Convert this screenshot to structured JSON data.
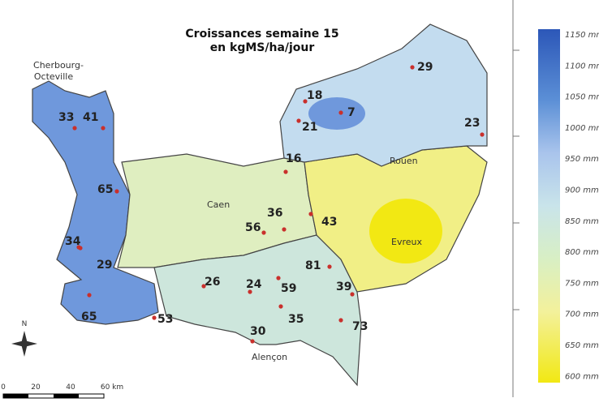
{
  "title": [
    "Croissances semaine 15",
    "en kgMS/ha/jour"
  ],
  "cities": {
    "cherbourg": [
      "Cherbourg-",
      "Octeville"
    ],
    "caen": "Caen",
    "rouen": "Rouen",
    "evreux": "Evreux",
    "alencon": "Alençon"
  },
  "growth_values": [
    33,
    41,
    65,
    34,
    29,
    65,
    18,
    7,
    21,
    29,
    23,
    16,
    36,
    43,
    56,
    81,
    26,
    24,
    59,
    39,
    35,
    53,
    73,
    30
  ],
  "legend": [
    "1150 mm",
    "1100 mm",
    "1050 mm",
    "1000 mm",
    "950 mm",
    "900 mm",
    "850 mm",
    "800 mm",
    "750 mm",
    "700 mm",
    "650 mm",
    "600 mm"
  ],
  "scale": [
    "0",
    "20",
    "40",
    "60 km"
  ],
  "compass": "N"
}
